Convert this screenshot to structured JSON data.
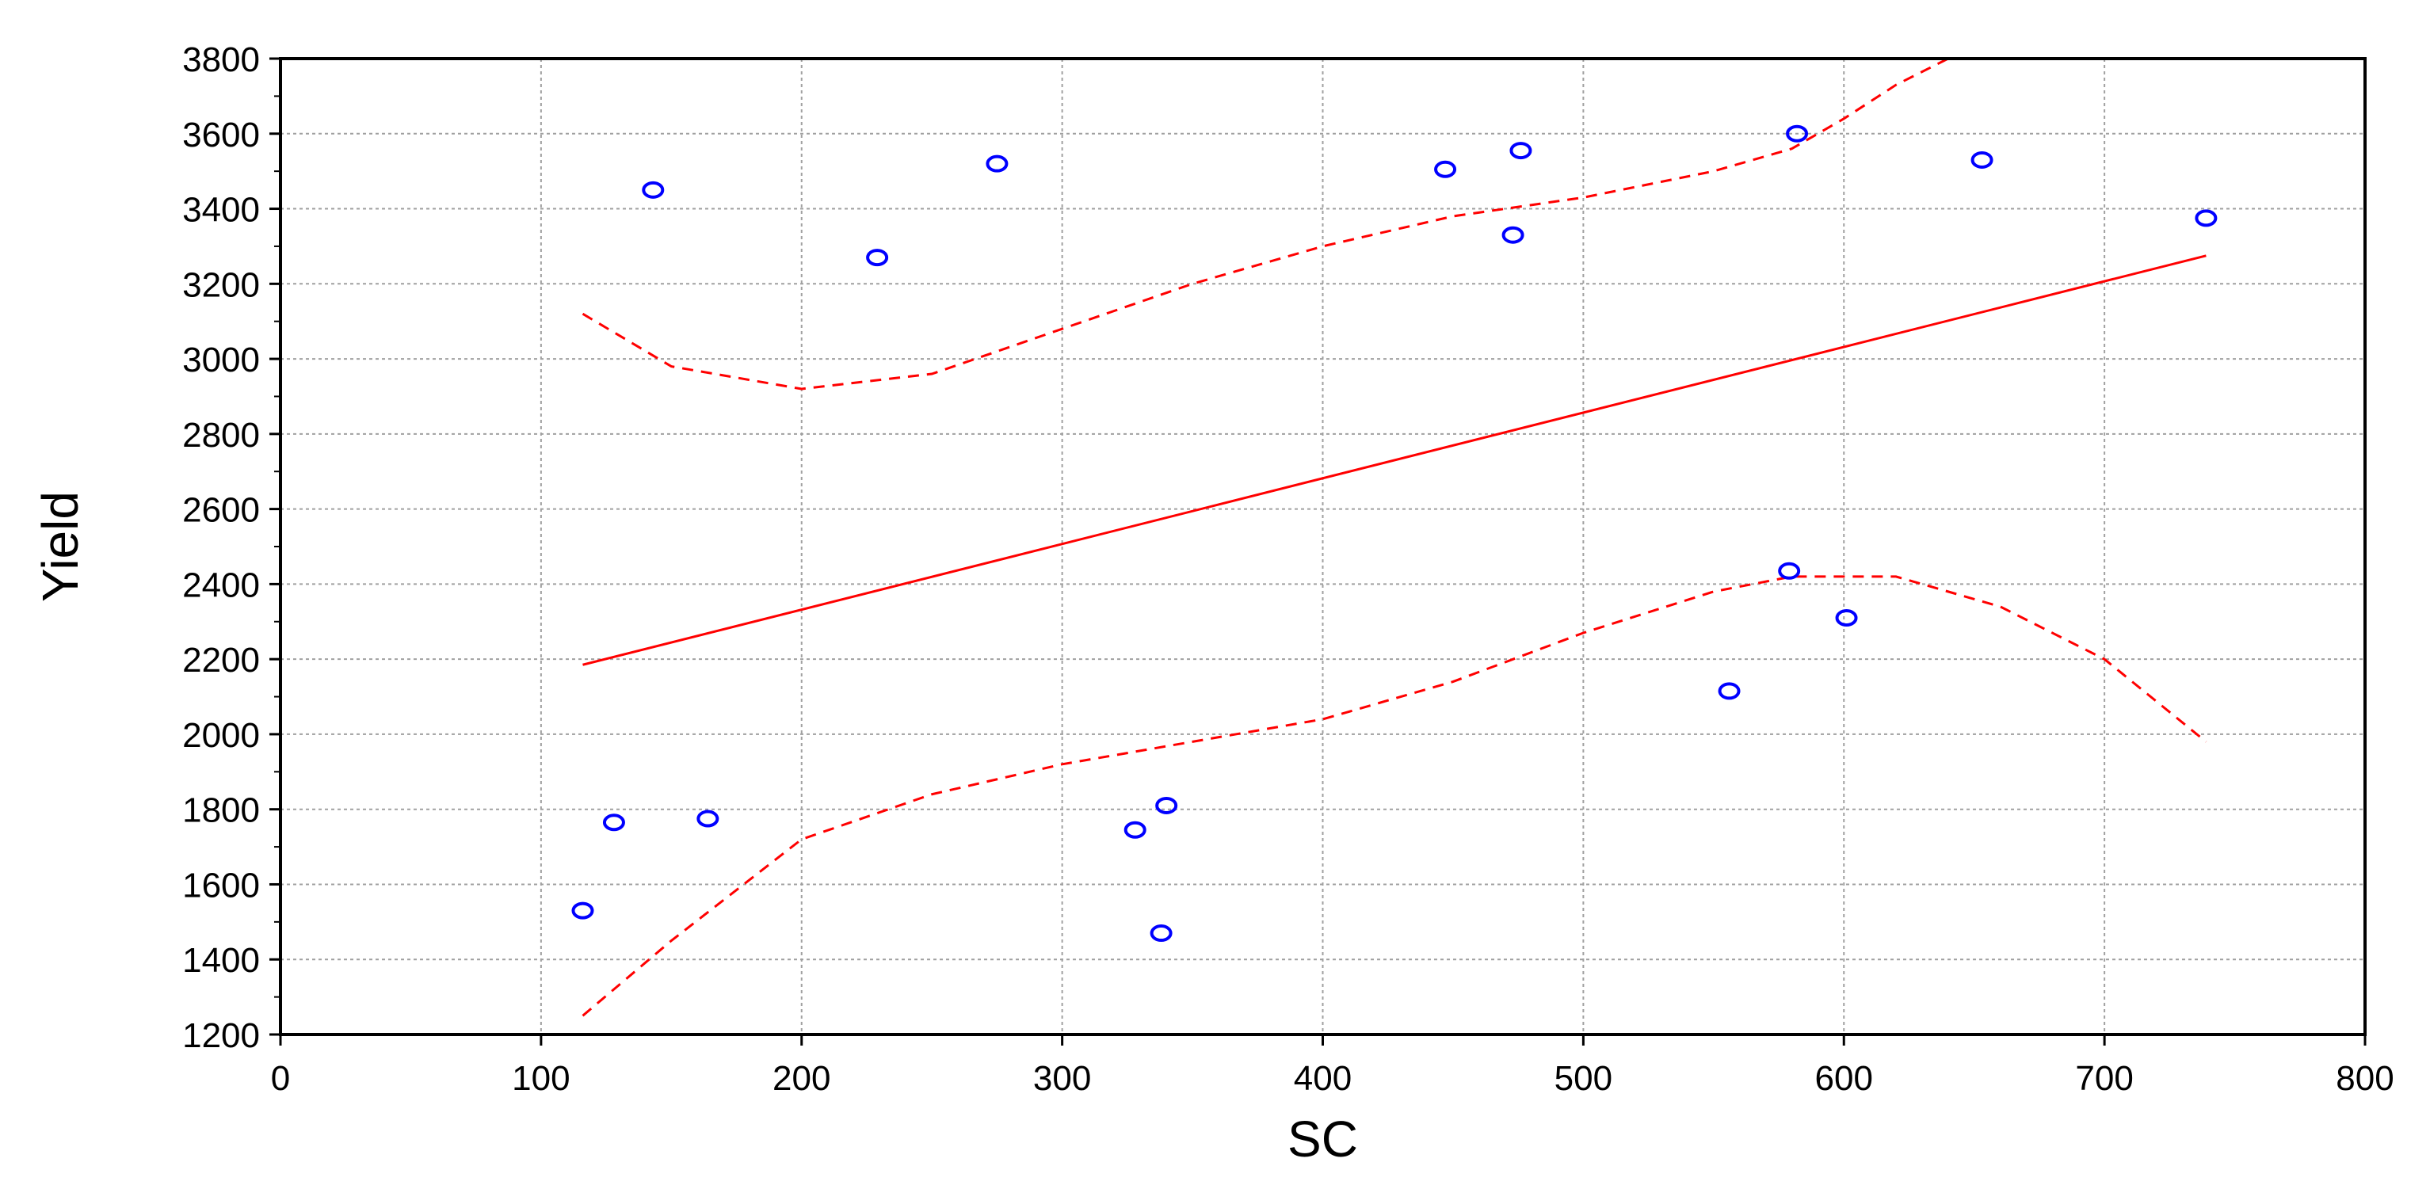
{
  "chart_data": {
    "type": "scatter",
    "title": "",
    "xlabel": "SC",
    "ylabel": "Yield",
    "xlim": [
      0,
      800
    ],
    "ylim": [
      1200,
      3800
    ],
    "xticks": [
      0,
      100,
      200,
      300,
      400,
      500,
      600,
      700,
      800
    ],
    "yticks": [
      1200,
      1400,
      1600,
      1800,
      2000,
      2200,
      2400,
      2600,
      2800,
      3000,
      3200,
      3400,
      3600,
      3800
    ],
    "grid": true,
    "colors": {
      "points": "#0000ff",
      "fit": "#ff0000",
      "grid": "#a0a0a0",
      "frame": "#000000"
    },
    "points": [
      {
        "x": 116,
        "y": 1530
      },
      {
        "x": 128,
        "y": 1765
      },
      {
        "x": 143,
        "y": 3450
      },
      {
        "x": 164,
        "y": 1775
      },
      {
        "x": 229,
        "y": 3270
      },
      {
        "x": 275,
        "y": 3520
      },
      {
        "x": 328,
        "y": 1745
      },
      {
        "x": 338,
        "y": 1470
      },
      {
        "x": 340,
        "y": 1810
      },
      {
        "x": 447,
        "y": 3505
      },
      {
        "x": 473,
        "y": 3330
      },
      {
        "x": 476,
        "y": 3555
      },
      {
        "x": 556,
        "y": 2115
      },
      {
        "x": 579,
        "y": 2435
      },
      {
        "x": 582,
        "y": 3600
      },
      {
        "x": 601,
        "y": 2310
      },
      {
        "x": 653,
        "y": 3530
      },
      {
        "x": 739,
        "y": 3375
      }
    ],
    "fit_line": {
      "x": [
        116,
        739
      ],
      "y": [
        2185,
        3275
      ]
    },
    "upper_band": {
      "x": [
        116,
        150,
        200,
        250,
        300,
        350,
        400,
        450,
        500,
        550,
        580,
        600,
        620,
        640
      ],
      "y": [
        3120,
        2980,
        2920,
        2960,
        3080,
        3200,
        3300,
        3380,
        3430,
        3500,
        3560,
        3640,
        3730,
        3800
      ]
    },
    "lower_band": {
      "x": [
        116,
        150,
        200,
        250,
        300,
        350,
        400,
        450,
        500,
        550,
        580,
        620,
        660,
        700,
        739
      ],
      "y": [
        1250,
        1450,
        1720,
        1840,
        1920,
        1980,
        2040,
        2140,
        2270,
        2380,
        2420,
        2420,
        2340,
        2200,
        1980
      ]
    }
  }
}
